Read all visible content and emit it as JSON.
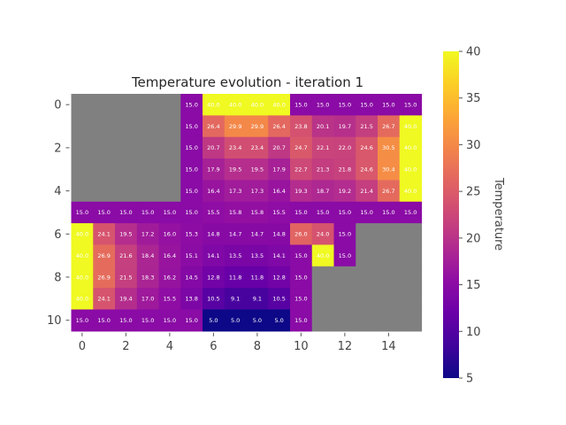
{
  "chart_data": {
    "type": "heatmap",
    "title": "Temperature evolution - iteration 1",
    "xlabel": "",
    "ylabel": "",
    "colorbar_label": "Temperature",
    "colormap": "plasma",
    "clim": [
      5,
      40
    ],
    "colorbar_ticks": [
      5,
      10,
      15,
      20,
      25,
      30,
      35,
      40
    ],
    "x_tick_labels": [
      "0",
      "2",
      "4",
      "6",
      "8",
      "10",
      "12",
      "14"
    ],
    "x_tick_values": [
      0,
      2,
      4,
      6,
      8,
      10,
      12,
      14
    ],
    "y_tick_labels": [
      "0",
      "2",
      "4",
      "6",
      "8",
      "10"
    ],
    "y_tick_values": [
      0,
      2,
      4,
      6,
      8,
      10
    ],
    "nrows": 11,
    "ncols": 16,
    "masked_color": "#808080",
    "annotation_format": "0.1f",
    "grid": false,
    "values": [
      [
        null,
        null,
        null,
        null,
        null,
        15.0,
        40.0,
        40.0,
        40.0,
        40.0,
        15.0,
        15.0,
        15.0,
        15.0,
        15.0,
        15.0
      ],
      [
        null,
        null,
        null,
        null,
        null,
        15.0,
        26.4,
        29.9,
        29.9,
        26.4,
        23.8,
        20.1,
        19.7,
        21.5,
        26.7,
        40.0
      ],
      [
        null,
        null,
        null,
        null,
        null,
        15.0,
        20.7,
        23.4,
        23.4,
        20.7,
        24.7,
        22.1,
        22.0,
        24.6,
        30.5,
        40.0
      ],
      [
        null,
        null,
        null,
        null,
        null,
        15.0,
        17.9,
        19.5,
        19.5,
        17.9,
        22.7,
        21.3,
        21.8,
        24.6,
        30.4,
        40.0
      ],
      [
        null,
        null,
        null,
        null,
        null,
        15.0,
        16.4,
        17.3,
        17.3,
        16.4,
        19.3,
        18.7,
        19.2,
        21.4,
        26.7,
        40.0
      ],
      [
        15.0,
        15.0,
        15.0,
        15.0,
        15.0,
        15.0,
        15.5,
        15.8,
        15.8,
        15.5,
        15.0,
        15.0,
        15.0,
        15.0,
        15.0,
        15.0
      ],
      [
        40.0,
        24.1,
        19.5,
        17.2,
        16.0,
        15.3,
        14.8,
        14.7,
        14.7,
        14.8,
        26.0,
        24.0,
        15.0,
        null,
        null,
        null
      ],
      [
        40.0,
        26.9,
        21.6,
        18.4,
        16.4,
        15.1,
        14.1,
        13.5,
        13.5,
        14.1,
        15.0,
        40.0,
        15.0,
        null,
        null,
        null
      ],
      [
        40.0,
        26.9,
        21.5,
        18.3,
        16.2,
        14.5,
        12.8,
        11.8,
        11.8,
        12.8,
        15.0,
        null,
        null,
        null,
        null,
        null
      ],
      [
        40.0,
        24.1,
        19.4,
        17.0,
        15.5,
        13.8,
        10.5,
        9.1,
        9.1,
        10.5,
        15.0,
        null,
        null,
        null,
        null,
        null
      ],
      [
        15.0,
        15.0,
        15.0,
        15.0,
        15.0,
        15.0,
        5.0,
        5.0,
        5.0,
        5.0,
        15.0,
        null,
        null,
        null,
        null,
        null
      ]
    ]
  }
}
